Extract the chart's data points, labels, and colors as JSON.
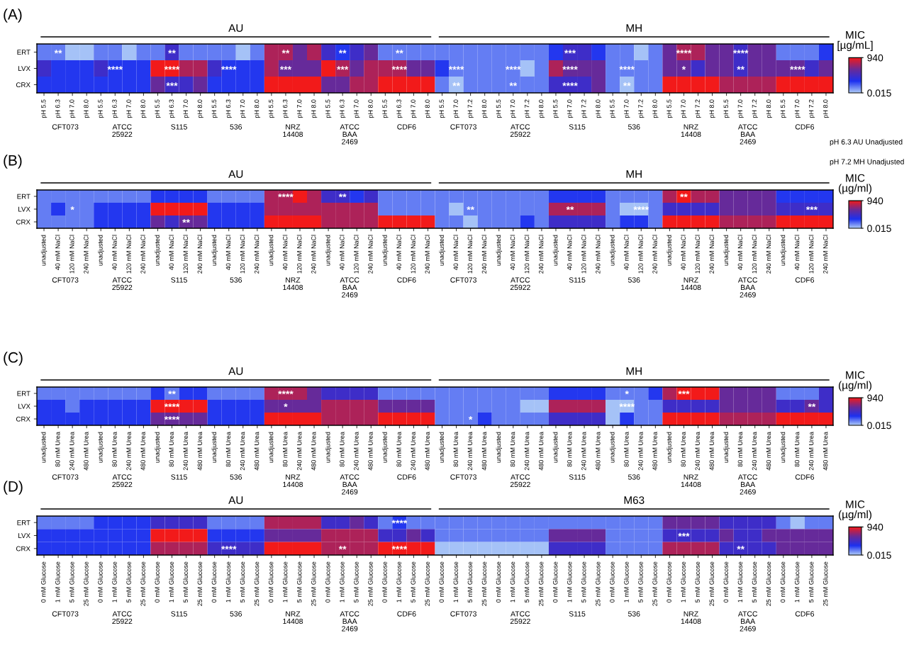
{
  "chart_data": [
    {
      "type": "heatmap",
      "title": "(A)",
      "clabel": "MIC\n[µg/mL]",
      "clim": [
        0.015,
        940
      ],
      "cticks": [
        0.015,
        940
      ],
      "colors": [
        "#aecbf7",
        "#1c30ef",
        "#6a2a96",
        "#f21a1a"
      ],
      "categories": [
        "pH 5.5",
        "pH 6.3",
        "pH 7.0",
        "pH 8.0",
        "pH 5.5",
        "pH 6.3",
        "pH 7.0",
        "pH 8.0",
        "pH 5.5",
        "pH 6.3",
        "pH 7.0",
        "pH 8.0",
        "pH 5.5",
        "pH 6.3",
        "pH 7.0",
        "pH 8.0",
        "pH 5.5",
        "pH 6.3",
        "pH 7.0",
        "pH 8.0",
        "pH 5.5",
        "pH 6.3",
        "pH 7.0",
        "pH 8.0",
        "pH 5.5",
        "pH 6.3",
        "pH 7.0",
        "pH 8.0",
        "pH 5.5",
        "pH 7.0",
        "pH 7.2",
        "pH 8.0",
        "pH 5.5",
        "pH 7.0",
        "pH 7.2",
        "pH 8.0",
        "pH 5.5",
        "pH 7.0",
        "pH 7.2",
        "pH 8.0",
        "pH 5.5",
        "pH 7.0",
        "pH 7.2",
        "pH 8.0",
        "pH 5.5",
        "pH 7.0",
        "pH 7.2",
        "pH 8.0",
        "pH 5.5",
        "pH 7.0",
        "pH 7.2",
        "pH 8.0",
        "pH 5.5",
        "pH 7.0",
        "pH 7.2",
        "pH 8.0"
      ],
      "y_categories": [
        "ERT",
        "LVX",
        "CRX"
      ],
      "cells": [
        [
          160,
          160,
          20,
          20,
          160,
          160,
          20,
          160,
          160,
          450,
          160,
          160,
          160,
          160,
          20,
          160,
          780,
          780,
          610,
          780,
          450,
          300,
          450,
          610,
          160,
          160,
          160,
          160,
          160,
          160,
          160,
          160,
          160,
          160,
          160,
          160,
          300,
          450,
          450,
          300,
          160,
          160,
          20,
          160,
          610,
          780,
          780,
          610,
          610,
          450,
          610,
          610,
          160,
          160,
          160,
          300
        ],
        [
          450,
          300,
          300,
          300,
          450,
          300,
          300,
          300,
          940,
          940,
          780,
          780,
          450,
          300,
          300,
          300,
          780,
          610,
          610,
          610,
          940,
          780,
          610,
          780,
          780,
          780,
          610,
          610,
          300,
          160,
          160,
          160,
          160,
          160,
          20,
          160,
          780,
          610,
          610,
          610,
          160,
          160,
          160,
          160,
          610,
          610,
          450,
          610,
          610,
          450,
          610,
          610,
          610,
          610,
          450,
          610
        ],
        [
          300,
          300,
          300,
          300,
          300,
          300,
          300,
          300,
          610,
          450,
          450,
          610,
          300,
          300,
          300,
          300,
          940,
          940,
          940,
          940,
          610,
          610,
          780,
          780,
          940,
          940,
          940,
          940,
          160,
          20,
          160,
          160,
          160,
          160,
          160,
          160,
          450,
          450,
          450,
          610,
          160,
          20,
          160,
          160,
          940,
          940,
          940,
          940,
          780,
          780,
          780,
          780,
          940,
          940,
          940,
          940
        ]
      ],
      "cell_labels": [
        [
          null,
          "**",
          null,
          null,
          null,
          null,
          null,
          null,
          null,
          "**",
          null,
          null,
          null,
          null,
          null,
          null,
          null,
          "**",
          null,
          null,
          null,
          "**",
          null,
          null,
          null,
          "**",
          null,
          null,
          null,
          null,
          null,
          null,
          null,
          null,
          null,
          null,
          null,
          "***",
          null,
          null,
          null,
          null,
          null,
          null,
          null,
          "****",
          null,
          null,
          null,
          "****",
          null,
          null,
          null,
          null,
          null,
          null
        ],
        [
          null,
          null,
          null,
          null,
          null,
          "****",
          null,
          null,
          null,
          "****",
          null,
          null,
          null,
          "****",
          null,
          null,
          null,
          "***",
          null,
          null,
          null,
          "***",
          null,
          null,
          null,
          "****",
          null,
          null,
          null,
          "****",
          null,
          null,
          null,
          "****",
          null,
          null,
          null,
          "****",
          null,
          null,
          null,
          "****",
          null,
          null,
          null,
          "*",
          null,
          null,
          null,
          "**",
          null,
          null,
          null,
          "****",
          null,
          null
        ],
        [
          null,
          null,
          null,
          null,
          null,
          null,
          null,
          null,
          null,
          "***",
          null,
          null,
          null,
          null,
          null,
          null,
          null,
          null,
          null,
          null,
          null,
          null,
          null,
          null,
          null,
          null,
          null,
          null,
          null,
          "**",
          null,
          null,
          null,
          "**",
          null,
          null,
          null,
          "****",
          null,
          null,
          null,
          "**",
          null,
          null,
          null,
          null,
          null,
          null,
          null,
          null,
          null,
          null,
          null,
          null,
          null,
          null
        ]
      ],
      "annotations": [
        "AU",
        "MH",
        "CFT073",
        "ATCC\n25922",
        "S115",
        "536",
        "NRZ\n14408",
        "ATCC\nBAA\n2469",
        "CDF6",
        "CFT073",
        "ATCC\n25922",
        "S115",
        "536",
        "NRZ\n14408",
        "ATCC\nBAA\n2469",
        "CDF6",
        "pH 6.3 AU Unadjusted",
        "pH 7.2 MH Unadjusted"
      ]
    },
    {
      "type": "heatmap",
      "title": "(B)",
      "clabel": "MIC\n(µg/ml)",
      "clim": [
        0.015,
        940
      ],
      "cticks": [
        0.015,
        940
      ],
      "colors": [
        "#aecbf7",
        "#1c30ef",
        "#6a2a96",
        "#f21a1a"
      ],
      "categories": [
        "unadjusted",
        "40 mM NaCl",
        "120 mM NaCl",
        "240 mM NaCl",
        "unadjusted",
        "40 mM NaCl",
        "120 mM NaCl",
        "240 mM NaCl",
        "unadjusted",
        "40 mM NaCl",
        "120 mM NaCl",
        "240 mM NaCl",
        "unadjusted",
        "40 mM NaCl",
        "120 mM NaCl",
        "240 mM NaCl",
        "unadjusted",
        "40 mM NaCl",
        "120 mM NaCl",
        "240 mM NaCl",
        "unadjusted",
        "40 mM NaCl",
        "120 mM NaCl",
        "240 mM NaCl",
        "unadjusted",
        "40 mM NaCl",
        "120 mM NaCl",
        "240 mM NaCl",
        "unadjusted",
        "40 mM NaCl",
        "120 mM NaCl",
        "240 mM NaCl",
        "unadjusted",
        "40 mM NaCl",
        "120 mM NaCl",
        "240 mM NaCl",
        "unadjusted",
        "40 mM NaCl",
        "120 mM NaCl",
        "240 mM NaCl",
        "unadjusted",
        "40 mM NaCl",
        "120 mM NaCl",
        "240 mM NaCl",
        "unadjusted",
        "40 mM NaCl",
        "120 mM NaCl",
        "240 mM NaCl",
        "unadjusted",
        "40 mM NaCl",
        "120 mM NaCl",
        "240 mM NaCl",
        "unadjusted",
        "40 mM NaCl",
        "120 mM NaCl",
        "240 mM NaCl"
      ],
      "y_categories": [
        "ERT",
        "LVX",
        "CRX"
      ],
      "cells": [
        [
          160,
          160,
          160,
          160,
          160,
          160,
          160,
          160,
          300,
          300,
          300,
          300,
          160,
          160,
          160,
          160,
          780,
          780,
          940,
          780,
          450,
          450,
          300,
          450,
          160,
          160,
          160,
          160,
          160,
          160,
          160,
          160,
          160,
          160,
          160,
          160,
          300,
          300,
          300,
          300,
          160,
          160,
          160,
          160,
          780,
          940,
          780,
          780,
          610,
          610,
          610,
          610,
          300,
          300,
          300,
          300
        ],
        [
          160,
          300,
          160,
          160,
          300,
          300,
          300,
          300,
          940,
          940,
          940,
          940,
          300,
          300,
          300,
          300,
          780,
          780,
          780,
          780,
          780,
          780,
          780,
          780,
          160,
          160,
          160,
          160,
          160,
          20,
          160,
          160,
          160,
          160,
          160,
          160,
          780,
          780,
          780,
          780,
          160,
          20,
          20,
          160,
          450,
          450,
          450,
          450,
          610,
          610,
          610,
          610,
          450,
          450,
          450,
          450
        ],
        [
          160,
          160,
          160,
          160,
          300,
          300,
          300,
          300,
          610,
          450,
          610,
          610,
          300,
          300,
          300,
          300,
          940,
          940,
          940,
          940,
          780,
          780,
          780,
          780,
          940,
          940,
          940,
          940,
          160,
          160,
          20,
          160,
          160,
          160,
          300,
          160,
          450,
          450,
          450,
          450,
          160,
          300,
          300,
          160,
          940,
          940,
          940,
          940,
          780,
          780,
          780,
          780,
          940,
          940,
          940,
          940
        ]
      ],
      "cell_labels": [
        [
          null,
          null,
          null,
          null,
          null,
          null,
          null,
          null,
          null,
          null,
          null,
          null,
          null,
          null,
          null,
          null,
          null,
          "****",
          null,
          null,
          null,
          "**",
          null,
          null,
          null,
          null,
          null,
          null,
          null,
          null,
          null,
          null,
          null,
          null,
          null,
          null,
          null,
          null,
          null,
          null,
          null,
          null,
          null,
          null,
          null,
          "**",
          null,
          null,
          null,
          null,
          null,
          null,
          null,
          null,
          null,
          null
        ],
        [
          null,
          null,
          "*",
          null,
          null,
          null,
          null,
          null,
          null,
          null,
          null,
          null,
          null,
          null,
          null,
          null,
          null,
          null,
          null,
          null,
          null,
          null,
          null,
          null,
          null,
          null,
          null,
          null,
          null,
          null,
          "**",
          null,
          null,
          null,
          null,
          null,
          null,
          "**",
          null,
          null,
          null,
          null,
          "****",
          null,
          null,
          null,
          null,
          null,
          null,
          null,
          null,
          null,
          null,
          null,
          "***",
          null
        ],
        [
          null,
          null,
          null,
          null,
          null,
          null,
          null,
          null,
          null,
          null,
          "**",
          null,
          null,
          null,
          null,
          null,
          null,
          null,
          null,
          null,
          null,
          null,
          null,
          null,
          null,
          null,
          null,
          null,
          null,
          null,
          null,
          null,
          null,
          null,
          null,
          null,
          null,
          null,
          null,
          null,
          null,
          null,
          null,
          null,
          null,
          null,
          null,
          null,
          null,
          null,
          null,
          null,
          null,
          null,
          null,
          null
        ]
      ],
      "annotations": [
        "AU",
        "MH",
        "CFT073",
        "ATCC\n25922",
        "S115",
        "536",
        "NRZ\n14408",
        "ATCC\nBAA\n2469",
        "CDF6",
        "CFT073",
        "ATCC\n25922",
        "S115",
        "536",
        "NRZ\n14408",
        "ATCC\nBAA\n2469",
        "CDF6"
      ]
    },
    {
      "type": "heatmap",
      "title": "(C)",
      "clabel": "MIC\n(µg/ml)",
      "clim": [
        0.015,
        940
      ],
      "cticks": [
        0.015,
        940
      ],
      "colors": [
        "#aecbf7",
        "#1c30ef",
        "#6a2a96",
        "#f21a1a"
      ],
      "categories": [
        "unadjusted",
        "80 mM Urea",
        "240 mM Urea",
        "480 mM Urea",
        "unadjusted",
        "80 mM Urea",
        "240 mM Urea",
        "480 mM Urea",
        "unadjusted",
        "80 mM Urea",
        "240 mM Urea",
        "480 mM Urea",
        "unadjusted",
        "80 mM Urea",
        "240 mM Urea",
        "480 mM Urea",
        "unadjusted",
        "80 mM Urea",
        "240 mM Urea",
        "480 mM Urea",
        "unadjusted",
        "80 mM Urea",
        "240 mM Urea",
        "480 mM Urea",
        "unadjusted",
        "80 mM Urea",
        "240 mM Urea",
        "480 mM Urea",
        "unadjusted",
        "80 mM Urea",
        "240 mM Urea",
        "480 mM Urea",
        "unadjusted",
        "80 mM Urea",
        "240 mM Urea",
        "480 mM Urea",
        "unadjusted",
        "80 mM Urea",
        "240 mM Urea",
        "480 mM Urea",
        "unadjusted",
        "80 mM Urea",
        "240 mM Urea",
        "480 mM Urea",
        "unadjusted",
        "80 mM Urea",
        "240 mM Urea",
        "480 mM Urea",
        "unadjusted",
        "80 mM Urea",
        "240 mM Urea",
        "480 mM Urea",
        "unadjusted",
        "80 mM Urea",
        "240 mM Urea",
        "480 mM Urea"
      ],
      "y_categories": [
        "ERT",
        "LVX",
        "CRX"
      ],
      "cells": [
        [
          160,
          160,
          160,
          160,
          160,
          160,
          160,
          160,
          300,
          160,
          300,
          300,
          160,
          160,
          160,
          160,
          780,
          780,
          780,
          610,
          450,
          450,
          450,
          450,
          160,
          160,
          160,
          160,
          160,
          160,
          160,
          160,
          160,
          160,
          160,
          160,
          300,
          300,
          300,
          300,
          160,
          160,
          160,
          300,
          780,
          940,
          940,
          940,
          610,
          610,
          610,
          610,
          160,
          160,
          160,
          450
        ],
        [
          300,
          300,
          160,
          300,
          300,
          300,
          300,
          300,
          940,
          940,
          940,
          940,
          300,
          300,
          300,
          300,
          610,
          610,
          610,
          610,
          780,
          780,
          780,
          780,
          610,
          610,
          610,
          610,
          160,
          160,
          160,
          160,
          160,
          160,
          20,
          20,
          780,
          780,
          780,
          780,
          20,
          20,
          160,
          160,
          450,
          450,
          450,
          450,
          610,
          610,
          610,
          610,
          450,
          450,
          610,
          450
        ],
        [
          300,
          300,
          300,
          300,
          300,
          300,
          300,
          300,
          610,
          610,
          610,
          610,
          300,
          300,
          300,
          300,
          940,
          940,
          940,
          940,
          780,
          780,
          780,
          780,
          940,
          940,
          940,
          940,
          160,
          160,
          160,
          300,
          160,
          160,
          160,
          160,
          450,
          450,
          450,
          450,
          20,
          300,
          160,
          160,
          940,
          940,
          940,
          940,
          780,
          780,
          780,
          780,
          940,
          940,
          940,
          940
        ]
      ],
      "cell_labels": [
        [
          null,
          null,
          null,
          null,
          null,
          null,
          null,
          null,
          null,
          "**",
          null,
          null,
          null,
          null,
          null,
          null,
          null,
          "****",
          null,
          null,
          null,
          null,
          null,
          null,
          null,
          null,
          null,
          null,
          null,
          null,
          null,
          null,
          null,
          null,
          null,
          null,
          null,
          null,
          null,
          null,
          null,
          "*",
          null,
          null,
          null,
          "***",
          null,
          null,
          null,
          null,
          null,
          null,
          null,
          null,
          null,
          null
        ],
        [
          null,
          null,
          null,
          null,
          null,
          null,
          null,
          null,
          null,
          "****",
          null,
          null,
          null,
          null,
          null,
          null,
          null,
          "*",
          null,
          null,
          null,
          null,
          null,
          null,
          null,
          null,
          null,
          null,
          null,
          null,
          null,
          null,
          null,
          null,
          null,
          null,
          null,
          null,
          null,
          null,
          null,
          "****",
          null,
          null,
          null,
          null,
          null,
          null,
          null,
          null,
          null,
          null,
          null,
          null,
          "**",
          null
        ],
        [
          null,
          null,
          null,
          null,
          null,
          null,
          null,
          null,
          null,
          "****",
          null,
          null,
          null,
          null,
          null,
          null,
          null,
          null,
          null,
          null,
          null,
          null,
          null,
          null,
          null,
          null,
          null,
          null,
          null,
          null,
          "*",
          null,
          null,
          null,
          null,
          null,
          null,
          null,
          null,
          null,
          null,
          null,
          null,
          null,
          null,
          null,
          null,
          null,
          null,
          null,
          null,
          null,
          null,
          null,
          null,
          null
        ]
      ],
      "annotations": [
        "AU",
        "MH",
        "CFT073",
        "ATCC\n25922",
        "S115",
        "536",
        "NRZ\n14408",
        "ATCC\nBAA\n2469",
        "CDF6",
        "CFT073",
        "ATCC\n25922",
        "S115",
        "536",
        "NRZ\n14408",
        "ATCC\nBAA\n2469",
        "CDF6"
      ]
    },
    {
      "type": "heatmap",
      "title": "(D)",
      "clabel": "MIC\n(µg/ml)",
      "clim": [
        0.015,
        940
      ],
      "cticks": [
        0.015,
        940
      ],
      "colors": [
        "#aecbf7",
        "#1c30ef",
        "#6a2a96",
        "#f21a1a"
      ],
      "categories": [
        "0 mM Glucose",
        "1 mM Glucose",
        "5 mM Glucose",
        "25 mM Glucose",
        "0 mM Glucose",
        "1 mM Glucose",
        "5 mM Glucose",
        "25 mM Glucose",
        "0 mM Glucose",
        "1 mM Glucose",
        "5 mM Glucose",
        "25 mM Glucose",
        "0 mM Glucose",
        "1 mM Glucose",
        "5 mM Glucose",
        "25 mM Glucose",
        "0 mM Glucose",
        "1 mM Glucose",
        "5 mM Glucose",
        "25 mM Glucose",
        "0 mM Glucose",
        "1 mM Glucose",
        "5 mM Glucose",
        "25 mM Glucose",
        "0 mM Glucose",
        "1 mM Glucose",
        "5 mM Glucose",
        "25 mM Glucose",
        "0 mM Glucose",
        "1 mM Glucose",
        "5 mM Glucose",
        "25 mM Glucose",
        "0 mM Glucose",
        "1 mM Glucose",
        "5 mM Glucose",
        "25 mM Glucose",
        "0 mM Glucose",
        "1 mM Glucose",
        "5 mM Glucose",
        "25 mM Glucose",
        "0 mM Glucose",
        "1 mM Glucose",
        "5 mM Glucose",
        "25 mM Glucose",
        "0 mM Glucose",
        "1 mM Glucose",
        "5 mM Glucose",
        "25 mM Glucose",
        "0 mM Glucose",
        "1 mM Glucose",
        "5 mM Glucose",
        "25 mM Glucose",
        "0 mM Glucose",
        "1 mM Glucose",
        "5 mM Glucose",
        "25 mM Glucose"
      ],
      "y_categories": [
        "ERT",
        "LVX",
        "CRX"
      ],
      "cells": [
        [
          160,
          160,
          160,
          160,
          300,
          300,
          300,
          300,
          450,
          450,
          450,
          450,
          160,
          160,
          160,
          160,
          780,
          780,
          780,
          780,
          450,
          450,
          610,
          450,
          160,
          300,
          160,
          160,
          160,
          160,
          160,
          160,
          160,
          160,
          160,
          160,
          160,
          160,
          160,
          160,
          160,
          160,
          160,
          160,
          610,
          610,
          610,
          610,
          450,
          450,
          450,
          450,
          160,
          20,
          160,
          160
        ],
        [
          300,
          300,
          300,
          300,
          300,
          300,
          300,
          300,
          940,
          940,
          940,
          940,
          300,
          300,
          300,
          300,
          610,
          610,
          610,
          610,
          780,
          780,
          780,
          780,
          450,
          450,
          610,
          450,
          160,
          160,
          160,
          160,
          160,
          160,
          160,
          160,
          610,
          610,
          610,
          610,
          160,
          160,
          160,
          160,
          450,
          450,
          450,
          450,
          610,
          450,
          450,
          610,
          610,
          610,
          610,
          610
        ],
        [
          300,
          300,
          300,
          300,
          300,
          300,
          300,
          300,
          780,
          780,
          780,
          780,
          450,
          450,
          450,
          450,
          940,
          940,
          940,
          940,
          780,
          780,
          780,
          780,
          940,
          940,
          940,
          940,
          20,
          20,
          20,
          20,
          20,
          20,
          20,
          20,
          450,
          450,
          450,
          450,
          160,
          160,
          160,
          160,
          780,
          780,
          780,
          780,
          450,
          450,
          450,
          450,
          610,
          610,
          610,
          610
        ]
      ],
      "cell_labels": [
        [
          null,
          null,
          null,
          null,
          null,
          null,
          null,
          null,
          null,
          null,
          null,
          null,
          null,
          null,
          null,
          null,
          null,
          null,
          null,
          null,
          null,
          null,
          null,
          null,
          null,
          "****",
          null,
          null,
          null,
          null,
          null,
          null,
          null,
          null,
          null,
          null,
          null,
          null,
          null,
          null,
          null,
          null,
          null,
          null,
          null,
          null,
          null,
          null,
          null,
          null,
          null,
          null,
          null,
          null,
          null,
          null
        ],
        [
          null,
          null,
          null,
          null,
          null,
          null,
          null,
          null,
          null,
          null,
          null,
          null,
          null,
          null,
          null,
          null,
          null,
          null,
          null,
          null,
          null,
          null,
          null,
          null,
          null,
          null,
          null,
          null,
          null,
          null,
          null,
          null,
          null,
          null,
          null,
          null,
          null,
          null,
          null,
          null,
          null,
          null,
          null,
          null,
          null,
          "***",
          null,
          null,
          null,
          null,
          null,
          null,
          null,
          null,
          null,
          null
        ],
        [
          null,
          null,
          null,
          null,
          null,
          null,
          null,
          null,
          null,
          null,
          null,
          null,
          null,
          "****",
          null,
          null,
          null,
          null,
          null,
          null,
          null,
          "**",
          null,
          null,
          null,
          "****",
          null,
          null,
          null,
          null,
          null,
          null,
          null,
          null,
          null,
          null,
          null,
          null,
          null,
          null,
          null,
          null,
          null,
          null,
          null,
          null,
          null,
          null,
          null,
          "**",
          null,
          null,
          null,
          null,
          null,
          null
        ]
      ],
      "annotations": [
        "AU",
        "M63",
        "CFT073",
        "ATCC\n25922",
        "S115",
        "536",
        "NRZ\n14408",
        "ATCC\nBAA\n2469",
        "CDF6",
        "CFT073",
        "ATCC\n25922",
        "S115",
        "536",
        "NRZ\n14408",
        "ATCC\nBAA\n2469",
        "CDF6"
      ]
    }
  ]
}
